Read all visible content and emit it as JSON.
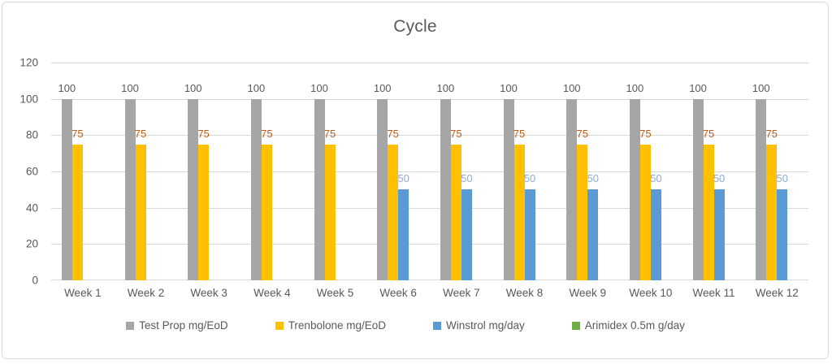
{
  "window": {
    "background": "#ffffff",
    "border_color": "#d9d9d9"
  },
  "chart_data": {
    "type": "bar",
    "title": "Cycle",
    "title_color": "#595959",
    "axis_text_color": "#595959",
    "gridline_color": "#d9d9d9",
    "grid": true,
    "data_labels": true,
    "legend_position": "bottom",
    "ylim": [
      0,
      120
    ],
    "yticks": [
      0,
      20,
      40,
      60,
      80,
      100,
      120
    ],
    "categories": [
      "Week 1",
      "Week 2",
      "Week 3",
      "Week 4",
      "Week 5",
      "Week 6",
      "Week 7",
      "Week 8",
      "Week 9",
      "Week 10",
      "Week 11",
      "Week 12"
    ],
    "series": [
      {
        "name": "Test Prop mg/EoD",
        "color": "#a6a6a6",
        "label_color": "#595959",
        "values": [
          100,
          100,
          100,
          100,
          100,
          100,
          100,
          100,
          100,
          100,
          100,
          100
        ]
      },
      {
        "name": "Trenbolone mg/EoD",
        "color": "#ffc000",
        "label_color": "#c55a11",
        "values": [
          75,
          75,
          75,
          75,
          75,
          75,
          75,
          75,
          75,
          75,
          75,
          75
        ]
      },
      {
        "name": "Winstrol mg/day",
        "color": "#5b9bd5",
        "label_color": "#8faadc",
        "values": [
          0,
          0,
          0,
          0,
          0,
          50,
          50,
          50,
          50,
          50,
          50,
          50
        ]
      },
      {
        "name": "Arimidex 0.5m g/day",
        "color": "#70ad47",
        "label_color": "#70ad47",
        "values": [
          0,
          0,
          0,
          0,
          0,
          0,
          0,
          0,
          0,
          0,
          0,
          0
        ]
      }
    ]
  }
}
